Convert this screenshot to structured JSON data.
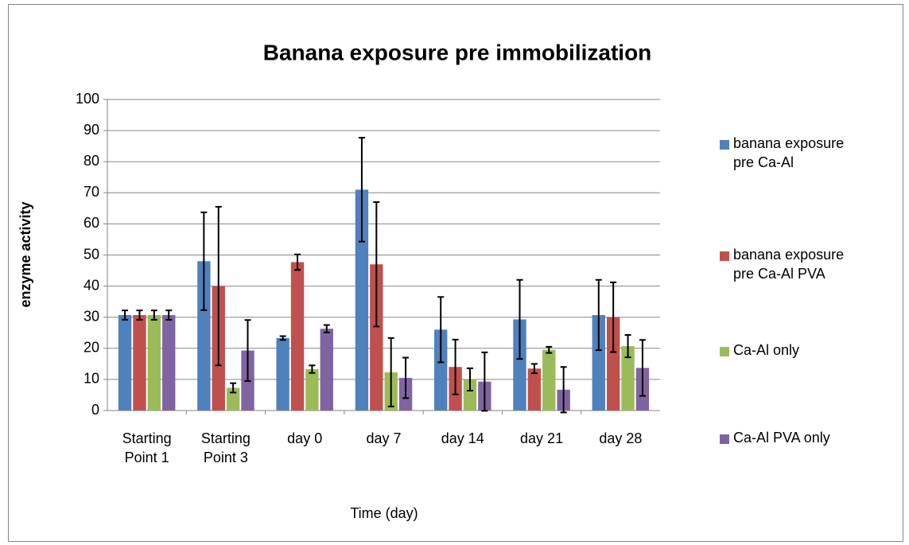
{
  "chart_data": {
    "type": "bar",
    "title": "Banana exposure pre immobilization",
    "x_label": "Time (day)",
    "y_label": "enzyme activity",
    "categories": [
      "Starting Point 1",
      "Starting Point 3",
      "day 0",
      "day 7",
      "day 14",
      "day 21",
      "day 28"
    ],
    "series": [
      {
        "name": "banana exposure pre Ca-Al",
        "color": "#4f81bd",
        "values": [
          30.7,
          48,
          23.3,
          71,
          26,
          29.3,
          30.7
        ],
        "errors": [
          1.5,
          15.7,
          0.6,
          16.7,
          10.5,
          12.7,
          11.3
        ]
      },
      {
        "name": "banana exposure pre Ca-Al PVA",
        "color": "#c0504d",
        "values": [
          30.7,
          40,
          47.7,
          47,
          14,
          13.5,
          30
        ],
        "errors": [
          1.5,
          25.5,
          2.5,
          20,
          8.8,
          1.5,
          11.2
        ]
      },
      {
        "name": "Ca-Al only",
        "color": "#9bbb59",
        "values": [
          30.7,
          7.3,
          13.3,
          12.3,
          10,
          19.5,
          20.7
        ],
        "errors": [
          1.5,
          1.5,
          1.2,
          11,
          3.6,
          1,
          3.6
        ]
      },
      {
        "name": "Ca-Al PVA only",
        "color": "#8064a2",
        "values": [
          30.7,
          19.3,
          26.3,
          10.5,
          9.3,
          6.7,
          13.7
        ],
        "errors": [
          1.5,
          9.8,
          1.2,
          6.5,
          9.4,
          7.3,
          9
        ]
      }
    ],
    "ylim": [
      0,
      100
    ],
    "yticks": [
      0,
      10,
      20,
      30,
      40,
      50,
      60,
      70,
      80,
      90,
      100
    ],
    "grid": true,
    "legend": "right"
  }
}
